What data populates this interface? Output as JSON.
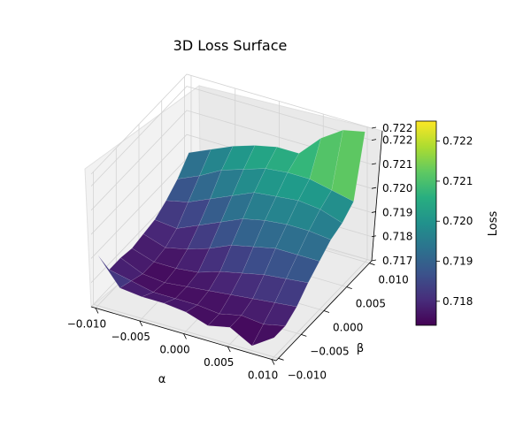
{
  "chart_data": {
    "type": "surface3d",
    "title": "3D Loss Surface",
    "xlabel": "α",
    "ylabel": "β",
    "zlabel": "Loss",
    "colorbar_label": "Loss",
    "colormap": "viridis",
    "xlim": [
      -0.0105,
      0.0105
    ],
    "ylim": [
      -0.0105,
      0.0105
    ],
    "zlim": [
      0.717,
      0.7225
    ],
    "color_range": [
      0.7174,
      0.7225
    ],
    "x_ticks": [
      "−0.010",
      "−0.005",
      "0.000",
      "0.005",
      "0.010"
    ],
    "y_ticks": [
      "−0.010",
      "−0.005",
      "0.000",
      "0.005",
      "0.010"
    ],
    "z_ticks": [
      "0.717",
      "0.718",
      "0.719",
      "0.720",
      "0.721",
      "0.722",
      "0.722"
    ],
    "colorbar_ticks": [
      "0.718",
      "0.719",
      "0.720",
      "0.721",
      "0.722"
    ],
    "grid": true,
    "alpha_values": [
      -0.01,
      -0.0075,
      -0.005,
      -0.0025,
      0.0,
      0.0025,
      0.005,
      0.0075,
      0.01
    ],
    "beta_values": [
      -0.01,
      -0.0075,
      -0.005,
      -0.0025,
      0.0,
      0.0025,
      0.005,
      0.0075,
      0.01
    ],
    "loss_grid": [
      [
        0.7191,
        0.718,
        0.718,
        0.7179,
        0.718,
        0.7181,
        0.7184,
        0.7188,
        0.7194
      ],
      [
        0.718,
        0.7178,
        0.7176,
        0.7176,
        0.7177,
        0.718,
        0.7186,
        0.7192,
        0.7198
      ],
      [
        0.7179,
        0.7176,
        0.7175,
        0.7176,
        0.7179,
        0.7184,
        0.719,
        0.7197,
        0.7202
      ],
      [
        0.7179,
        0.7176,
        0.7176,
        0.7177,
        0.7182,
        0.7188,
        0.7194,
        0.72,
        0.7205
      ],
      [
        0.7178,
        0.7176,
        0.7177,
        0.718,
        0.7186,
        0.7192,
        0.7198,
        0.7203,
        0.7207
      ],
      [
        0.7175,
        0.7175,
        0.7178,
        0.7182,
        0.7188,
        0.7194,
        0.7199,
        0.7204,
        0.7207
      ],
      [
        0.7177,
        0.7177,
        0.7179,
        0.7184,
        0.719,
        0.7195,
        0.72,
        0.7204,
        0.7216
      ],
      [
        0.7172,
        0.7176,
        0.718,
        0.7185,
        0.719,
        0.7195,
        0.7199,
        0.7202,
        0.7222
      ],
      [
        0.7178,
        0.7178,
        0.7181,
        0.7186,
        0.719,
        0.7194,
        0.7196,
        0.72,
        0.7224
      ]
    ]
  }
}
